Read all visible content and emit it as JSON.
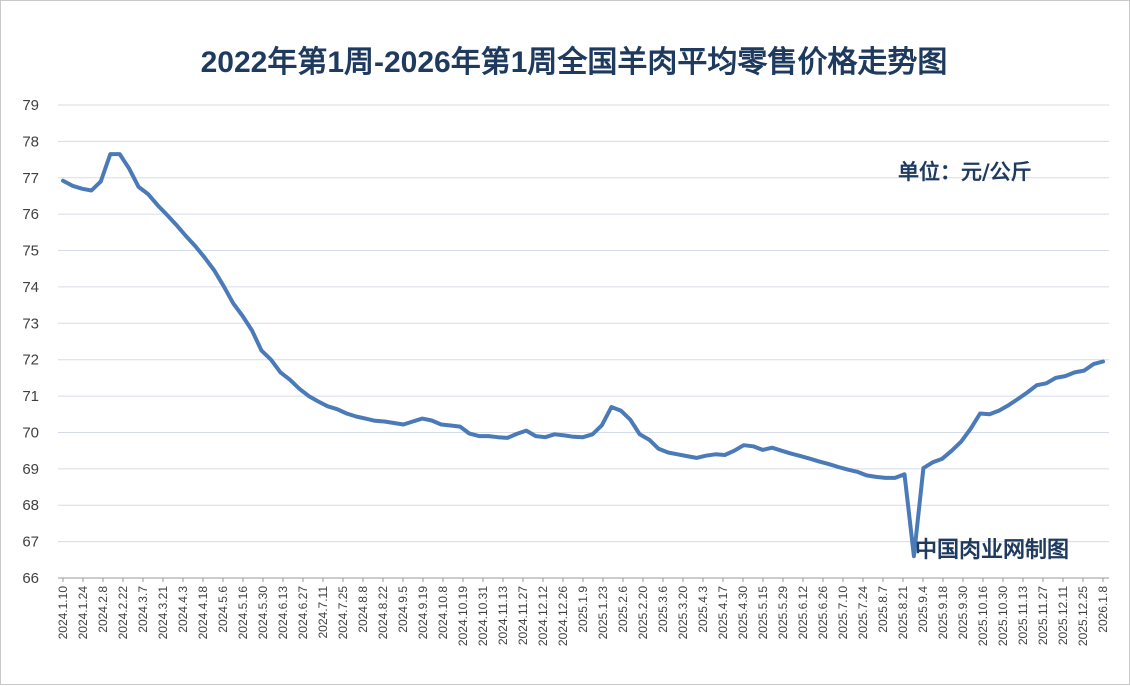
{
  "chart_data": {
    "type": "line",
    "title": "2022年第1周-2026年第1周全国羊肉平均零售价格走势图",
    "unit_label": "单位：元/公斤",
    "watermark": "中国肉业网制图",
    "xlabel": "",
    "ylabel": "",
    "ylim": [
      66,
      79
    ],
    "yticks": [
      66,
      67,
      68,
      69,
      70,
      71,
      72,
      73,
      74,
      75,
      76,
      77,
      78,
      79
    ],
    "grid": true,
    "legend": "none",
    "line_color": "#4a7ab8",
    "x_tick_labels": [
      "2024.1.10",
      "2024.1.24",
      "2024.2.8",
      "2024.2.22",
      "2024.3.7",
      "2024.3.21",
      "2024.4.3",
      "2024.4.18",
      "2024.5.6",
      "2024.5.16",
      "2024.5.30",
      "2024.6.13",
      "2024.6.27",
      "2024.7.11",
      "2024.7.25",
      "2024.8.8",
      "2024.8.22",
      "2024.9.5",
      "2024.9.19",
      "2024.10.8",
      "2024.10.19",
      "2024.10.31",
      "2024.11.13",
      "2024.11.27",
      "2024.12.12",
      "2024.12.26",
      "2025.1.9",
      "2025.1.23",
      "2025.2.6",
      "2025.2.20",
      "2025.3.6",
      "2025.3.20",
      "2025.4.3",
      "2025.4.17",
      "2025.4.30",
      "2025.5.15",
      "2025.5.29",
      "2025.6.12",
      "2025.6.26",
      "2025.7.10",
      "2025.7.24",
      "2025.8.7",
      "2025.8.21",
      "2025.9.4",
      "2025.9.18",
      "2025.9.30",
      "2025.10.16",
      "2025.10.30",
      "2025.11.13",
      "2025.11.27",
      "2025.12.11",
      "2025.12.25",
      "2026.1.8"
    ],
    "series": [
      {
        "values": [
          76.92,
          76.78,
          76.7,
          76.65,
          76.9,
          77.65,
          77.65,
          77.25,
          76.75,
          76.55,
          76.25,
          75.98,
          75.7,
          75.4,
          75.12,
          74.8,
          74.45,
          74.02,
          73.55,
          73.2,
          72.8,
          72.25,
          72.0,
          71.65,
          71.45,
          71.2,
          71.0,
          70.85,
          70.72,
          70.64,
          70.52,
          70.44,
          70.38,
          70.32,
          70.3,
          70.26,
          70.22,
          70.3,
          70.38,
          70.33,
          70.22,
          70.19,
          70.16,
          69.97,
          69.9,
          69.9,
          69.87,
          69.85,
          69.96,
          70.05,
          69.9,
          69.87,
          69.95,
          69.92,
          69.88,
          69.87,
          69.95,
          70.2,
          70.7,
          70.6,
          70.35,
          69.95,
          69.8,
          69.55,
          69.45,
          69.4,
          69.35,
          69.3,
          69.36,
          69.4,
          69.38,
          69.5,
          69.65,
          69.62,
          69.52,
          69.58,
          69.5,
          69.42,
          69.35,
          69.28,
          69.2,
          69.13,
          69.05,
          68.98,
          68.92,
          68.82,
          68.78,
          68.75,
          68.75,
          68.85,
          66.6,
          69.02,
          69.18,
          69.28,
          69.5,
          69.75,
          70.1,
          70.52,
          70.5,
          70.6,
          70.75,
          70.92,
          71.1,
          71.3,
          71.35,
          71.5,
          71.55,
          71.65,
          71.7,
          71.88,
          71.95
        ]
      }
    ]
  }
}
